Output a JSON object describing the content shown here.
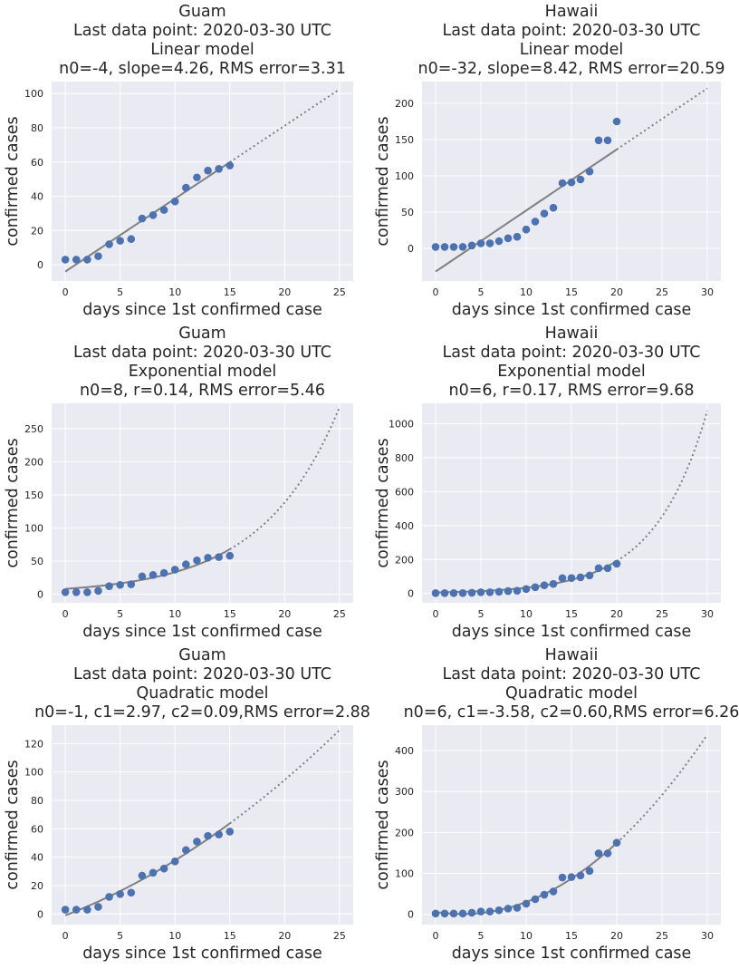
{
  "xlabel": "days since 1st confirmed case",
  "ylabel": "confirmed cases",
  "colors": {
    "points": "#4c72b0",
    "fit": "#808080",
    "plot_bg": "#eaeaf2",
    "grid": "#ffffff"
  },
  "chart_data": [
    {
      "type": "scatter",
      "title_lines": [
        "Guam",
        "Last data point: 2020-03-30 UTC",
        "Linear model",
        "n0=-4, slope=4.26, RMS error=3.31"
      ],
      "model": "linear",
      "params": {
        "n0": -4,
        "slope": 4.26
      },
      "x": [
        0,
        1,
        2,
        3,
        4,
        5,
        6,
        7,
        8,
        9,
        10,
        11,
        12,
        13,
        14,
        15
      ],
      "y": [
        3,
        3,
        3,
        5,
        12,
        14,
        15,
        27,
        29,
        32,
        37,
        45,
        51,
        55,
        56,
        58
      ],
      "fit_end": 15,
      "extrap_end": 25,
      "xlim": [
        -1.25,
        26.25
      ],
      "ylim": [
        -9.5,
        107
      ],
      "xticks": [
        0,
        5,
        10,
        15,
        20,
        25
      ],
      "yticks": [
        0,
        20,
        40,
        60,
        80,
        100
      ]
    },
    {
      "type": "scatter",
      "title_lines": [
        "Hawaii",
        "Last data point: 2020-03-30 UTC",
        "Linear model",
        "n0=-32, slope=8.42, RMS error=20.59"
      ],
      "model": "linear",
      "params": {
        "n0": -32,
        "slope": 8.42
      },
      "x": [
        0,
        1,
        2,
        3,
        4,
        5,
        6,
        7,
        8,
        9,
        10,
        11,
        12,
        13,
        14,
        15,
        16,
        17,
        18,
        19,
        20
      ],
      "y": [
        2,
        2,
        2,
        2,
        4,
        7,
        7,
        10,
        14,
        16,
        26,
        37,
        48,
        56,
        90,
        91,
        95,
        106,
        149,
        149,
        175
      ],
      "fit_end": 20,
      "extrap_end": 30,
      "xlim": [
        -1.5,
        31.5
      ],
      "ylim": [
        -45,
        230
      ],
      "xticks": [
        0,
        5,
        10,
        15,
        20,
        25,
        30
      ],
      "yticks": [
        0,
        50,
        100,
        150,
        200
      ]
    },
    {
      "type": "scatter",
      "title_lines": [
        "Guam",
        "Last data point: 2020-03-30 UTC",
        "Exponential model",
        "n0=8, r=0.14, RMS error=5.46"
      ],
      "model": "exponential",
      "params": {
        "n0": 8,
        "r": 0.1425
      },
      "x": [
        0,
        1,
        2,
        3,
        4,
        5,
        6,
        7,
        8,
        9,
        10,
        11,
        12,
        13,
        14,
        15
      ],
      "y": [
        3,
        3,
        3,
        5,
        12,
        14,
        15,
        27,
        29,
        32,
        37,
        45,
        51,
        55,
        56,
        58
      ],
      "fit_end": 15,
      "extrap_end": 25,
      "xlim": [
        -1.25,
        26.25
      ],
      "ylim": [
        -13,
        288
      ],
      "xticks": [
        0,
        5,
        10,
        15,
        20,
        25
      ],
      "yticks": [
        0,
        50,
        100,
        150,
        200,
        250
      ]
    },
    {
      "type": "scatter",
      "title_lines": [
        "Hawaii",
        "Last data point: 2020-03-30 UTC",
        "Exponential model",
        "n0=6, r=0.17, RMS error=9.68"
      ],
      "model": "exponential",
      "params": {
        "n0": 6,
        "r": 0.173
      },
      "x": [
        0,
        1,
        2,
        3,
        4,
        5,
        6,
        7,
        8,
        9,
        10,
        11,
        12,
        13,
        14,
        15,
        16,
        17,
        18,
        19,
        20
      ],
      "y": [
        2,
        2,
        2,
        2,
        4,
        7,
        7,
        10,
        14,
        16,
        26,
        37,
        48,
        56,
        90,
        91,
        95,
        106,
        149,
        149,
        175
      ],
      "fit_end": 20,
      "extrap_end": 30,
      "xlim": [
        -1.5,
        31.5
      ],
      "ylim": [
        -55,
        1120
      ],
      "xticks": [
        0,
        5,
        10,
        15,
        20,
        25,
        30
      ],
      "yticks": [
        0,
        200,
        400,
        600,
        800,
        1000
      ]
    },
    {
      "type": "scatter",
      "title_lines": [
        "Guam",
        "Last data point: 2020-03-30 UTC",
        "Quadratic model",
        "n0=-1, c1=2.97, c2=0.09,RMS error=2.88"
      ],
      "model": "quadratic",
      "params": {
        "n0": -1,
        "c1": 2.97,
        "c2": 0.09
      },
      "x": [
        0,
        1,
        2,
        3,
        4,
        5,
        6,
        7,
        8,
        9,
        10,
        11,
        12,
        13,
        14,
        15
      ],
      "y": [
        3,
        3,
        3,
        5,
        12,
        14,
        15,
        27,
        29,
        32,
        37,
        45,
        51,
        55,
        56,
        58
      ],
      "fit_end": 15,
      "extrap_end": 25,
      "xlim": [
        -1.25,
        26.25
      ],
      "ylim": [
        -7.5,
        133
      ],
      "xticks": [
        0,
        5,
        10,
        15,
        20,
        25
      ],
      "yticks": [
        0,
        20,
        40,
        60,
        80,
        100,
        120
      ]
    },
    {
      "type": "scatter",
      "title_lines": [
        "Hawaii",
        "Last data point: 2020-03-30 UTC",
        "Quadratic model",
        "n0=6, c1=-3.58, c2=0.60,RMS error=6.26"
      ],
      "model": "quadratic",
      "params": {
        "n0": 6,
        "c1": -3.58,
        "c2": 0.6
      },
      "x": [
        0,
        1,
        2,
        3,
        4,
        5,
        6,
        7,
        8,
        9,
        10,
        11,
        12,
        13,
        14,
        15,
        16,
        17,
        18,
        19,
        20
      ],
      "y": [
        2,
        2,
        2,
        2,
        4,
        7,
        7,
        10,
        14,
        16,
        26,
        37,
        48,
        56,
        90,
        91,
        95,
        106,
        149,
        149,
        175
      ],
      "fit_end": 20,
      "extrap_end": 30,
      "xlim": [
        -1.5,
        31.5
      ],
      "ylim": [
        -25,
        462
      ],
      "xticks": [
        0,
        5,
        10,
        15,
        20,
        25,
        30
      ],
      "yticks": [
        0,
        100,
        200,
        300,
        400
      ]
    }
  ]
}
